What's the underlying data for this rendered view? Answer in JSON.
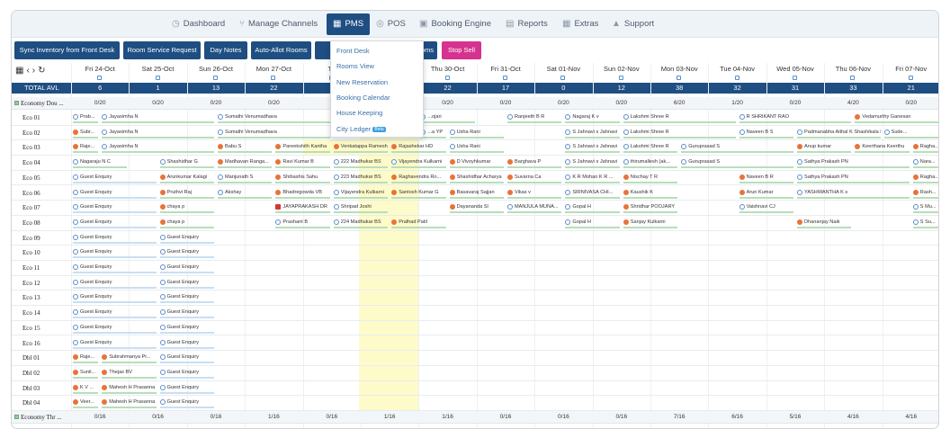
{
  "nav": {
    "items": [
      {
        "label": "Dashboard",
        "icon": "dashboard-icon"
      },
      {
        "label": "Manage Channels",
        "icon": "share-icon"
      },
      {
        "label": "PMS",
        "icon": "building-icon",
        "active": true
      },
      {
        "label": "POS",
        "icon": "pos-icon"
      },
      {
        "label": "Booking Engine",
        "icon": "calendar-icon"
      },
      {
        "label": "Reports",
        "icon": "report-icon"
      },
      {
        "label": "Extras",
        "icon": "grid-icon"
      },
      {
        "label": "Support",
        "icon": "user-icon"
      }
    ]
  },
  "toolbar": {
    "sync": "Sync Inventory from Front Desk",
    "room_service": "Room Service Request",
    "day_notes": "Day Notes",
    "auto_allot": "Auto-Allot Rooms",
    "rooms_suffix": "oms",
    "stop_sell": "Stop Sell"
  },
  "pms_menu": [
    {
      "label": "Front Desk"
    },
    {
      "label": "Rooms View"
    },
    {
      "label": "New Reservation"
    },
    {
      "label": "Booking Calendar"
    },
    {
      "label": "House Keeping"
    },
    {
      "label": "City Ledger",
      "badge": "Beta"
    }
  ],
  "grid": {
    "dates": [
      "Fri 24-Oct",
      "Sat 25-Oct",
      "Sun 26-Oct",
      "Mon 27-Oct",
      "Tu",
      "",
      "Thu 30-Oct",
      "Fri 31-Oct",
      "Sat 01-Nov",
      "Sun 02-Nov",
      "Mon 03-Nov",
      "Tue 04-Nov",
      "Wed 05-Nov",
      "Thu 06-Nov",
      "Fri 07-Nov"
    ],
    "total_label": "TOTAL AVL",
    "total_avl": [
      "6",
      "1",
      "13",
      "22",
      "",
      "",
      "22",
      "17",
      "0",
      "12",
      "38",
      "32",
      "31",
      "33",
      "21"
    ],
    "categories": [
      {
        "label": "Economy Dou ...",
        "counts": [
          "0/20",
          "0/20",
          "0/20",
          "0/20",
          "",
          "",
          "0/20",
          "0/20",
          "0/20",
          "0/20",
          "6/20",
          "1/20",
          "0/20",
          "4/20",
          "0/20"
        ]
      },
      {
        "label": "Economy Thr ...",
        "counts": [
          "0/16",
          "0/16",
          "0/16",
          "1/16",
          "0/16",
          "1/16",
          "1/16",
          "0/16",
          "0/16",
          "0/16",
          "7/16",
          "6/16",
          "5/16",
          "4/16",
          "4/16"
        ]
      }
    ],
    "rooms": [
      "Eco 01",
      "Eco 02",
      "Eco 03",
      "Eco 04",
      "Eco 05",
      "Eco 06",
      "Eco 07",
      "Eco 08",
      "Eco 09",
      "Eco 10",
      "Eco 11",
      "Eco 12",
      "Eco 13",
      "Eco 14",
      "Eco 15",
      "Eco 16",
      "Dbl 01",
      "Dbl 02",
      "Dbl 03",
      "Dbl 04"
    ],
    "bookings": [
      {
        "r": 0,
        "c": 0,
        "s": 0.5,
        "t": "Prab...",
        "k": "b"
      },
      {
        "r": 0,
        "c": 0.5,
        "s": 2,
        "t": "Jayasimha N",
        "k": "b"
      },
      {
        "r": 0,
        "c": 2.5,
        "s": 2,
        "t": "Sumathi Venumadhava",
        "k": "b"
      },
      {
        "r": 0,
        "c": 6,
        "s": 1,
        "t": "...ojari",
        "k": "b"
      },
      {
        "r": 0,
        "c": 7.5,
        "s": 1,
        "t": "Ranjeeth B R",
        "k": "b"
      },
      {
        "r": 0,
        "c": 8.5,
        "s": 1,
        "t": "Nagaraj K v",
        "k": "b"
      },
      {
        "r": 0,
        "c": 9.5,
        "s": 2,
        "t": "Lakshmi Shree R",
        "k": "b"
      },
      {
        "r": 0,
        "c": 11.5,
        "s": 2,
        "t": "R SHRIKANT RAO",
        "k": "b"
      },
      {
        "r": 0,
        "c": 13.5,
        "s": 1.5,
        "t": "Vedamurthy Ganesan",
        "k": "o"
      },
      {
        "r": 1,
        "c": 0,
        "s": 0.5,
        "t": "Subr...",
        "k": "o"
      },
      {
        "r": 1,
        "c": 0.5,
        "s": 2,
        "t": "Jayasimha N",
        "k": "b"
      },
      {
        "r": 1,
        "c": 2.5,
        "s": 2,
        "t": "Sumathi Venumadhava",
        "k": "b"
      },
      {
        "r": 1,
        "c": 6,
        "s": 0.5,
        "t": "...a YP",
        "k": "b"
      },
      {
        "r": 1,
        "c": 6.5,
        "s": 1,
        "t": "Usha Rani",
        "k": "b"
      },
      {
        "r": 1,
        "c": 8.5,
        "s": 1,
        "t": "S Jahnavi s Jahnavi",
        "k": "b"
      },
      {
        "r": 1,
        "c": 9.5,
        "s": 2,
        "t": "Lakshmi Shree R",
        "k": "b"
      },
      {
        "r": 1,
        "c": 11.5,
        "s": 1,
        "t": "Naveen B S",
        "k": "b"
      },
      {
        "r": 1,
        "c": 12.5,
        "s": 1.5,
        "t": "Padmanabha Aithal K Shashikala K",
        "k": "b"
      },
      {
        "r": 1,
        "c": 14,
        "s": 1,
        "t": "Sude...",
        "k": "b"
      },
      {
        "r": 2,
        "c": 0,
        "s": 0.5,
        "t": "Raje...",
        "k": "o"
      },
      {
        "r": 2,
        "c": 0.5,
        "s": 2,
        "t": "Jayasimha N",
        "k": "b"
      },
      {
        "r": 2,
        "c": 2.5,
        "s": 1,
        "t": "Babu S",
        "k": "o"
      },
      {
        "r": 2,
        "c": 3.5,
        "s": 1,
        "t": "Pareekshith Kantha",
        "k": "o"
      },
      {
        "r": 2,
        "c": 4.5,
        "s": 1,
        "t": "Venkatappa Ramesh",
        "k": "o"
      },
      {
        "r": 2,
        "c": 5.5,
        "s": 1,
        "t": "Rajashekar HD",
        "k": "o"
      },
      {
        "r": 2,
        "c": 6.5,
        "s": 1,
        "t": "Usha Rani",
        "k": "b"
      },
      {
        "r": 2,
        "c": 8.5,
        "s": 1,
        "t": "S Jahnavi s Jahnavi",
        "k": "b"
      },
      {
        "r": 2,
        "c": 9.5,
        "s": 1,
        "t": "Lakshmi Shree R",
        "k": "b"
      },
      {
        "r": 2,
        "c": 10.5,
        "s": 2,
        "t": "Guruprasad S",
        "k": "b"
      },
      {
        "r": 2,
        "c": 12.5,
        "s": 1,
        "t": "Anup kumar",
        "k": "o"
      },
      {
        "r": 2,
        "c": 13.5,
        "s": 1,
        "t": "Keerthana Keerthu",
        "k": "o"
      },
      {
        "r": 2,
        "c": 14.5,
        "s": 0.5,
        "t": "Ragha...",
        "k": "o"
      },
      {
        "r": 3,
        "c": 0,
        "s": 1,
        "t": "Nagaraju N C",
        "k": "b"
      },
      {
        "r": 3,
        "c": 1.5,
        "s": 1,
        "t": "Shashidhar G",
        "k": "b"
      },
      {
        "r": 3,
        "c": 2.5,
        "s": 1,
        "t": "Madhavan Ranga...",
        "k": "o"
      },
      {
        "r": 3,
        "c": 3.5,
        "s": 1,
        "t": "Ravi Kumar B",
        "k": "o"
      },
      {
        "r": 3,
        "c": 4.5,
        "s": 1,
        "t": "222 Madhukar BS",
        "k": "b"
      },
      {
        "r": 3,
        "c": 5.5,
        "s": 1,
        "t": "Vijayendra Kulkarni",
        "k": "b"
      },
      {
        "r": 3,
        "c": 6.5,
        "s": 1,
        "t": "D Vivoyhkumar",
        "k": "o"
      },
      {
        "r": 3,
        "c": 7.5,
        "s": 1,
        "t": "Barghava P",
        "k": "o"
      },
      {
        "r": 3,
        "c": 8.5,
        "s": 1,
        "t": "S Jahnavi s Jahnavi",
        "k": "b"
      },
      {
        "r": 3,
        "c": 9.5,
        "s": 1,
        "t": "thirumallesh (ak...",
        "k": "b"
      },
      {
        "r": 3,
        "c": 10.5,
        "s": 2,
        "t": "Guruprasad S",
        "k": "b"
      },
      {
        "r": 3,
        "c": 12.5,
        "s": 2,
        "t": "Sathya Prakash PN",
        "k": "b"
      },
      {
        "r": 3,
        "c": 14.5,
        "s": 0.5,
        "t": "Nara...",
        "k": "b"
      },
      {
        "r": 4,
        "c": 0,
        "s": 1.5,
        "t": "Guest Enquiry",
        "k": "b"
      },
      {
        "r": 4,
        "c": 1.5,
        "s": 1,
        "t": "Arunkumar Kalagi",
        "k": "o"
      },
      {
        "r": 4,
        "c": 2.5,
        "s": 1,
        "t": "Manjunath S",
        "k": "b"
      },
      {
        "r": 4,
        "c": 3.5,
        "s": 1,
        "t": "Shibashis Sahu",
        "k": "o"
      },
      {
        "r": 4,
        "c": 4.5,
        "s": 1,
        "t": "223 Madhukar BS",
        "k": "b"
      },
      {
        "r": 4,
        "c": 5.5,
        "s": 1,
        "t": "Raghavendra Ro...",
        "k": "o"
      },
      {
        "r": 4,
        "c": 6.5,
        "s": 1,
        "t": "Shashidhar Acharya",
        "k": "o"
      },
      {
        "r": 4,
        "c": 7.5,
        "s": 1,
        "t": "Suvarna Ca",
        "k": "o"
      },
      {
        "r": 4,
        "c": 8.5,
        "s": 1,
        "t": "K R Mohan K R ...",
        "k": "b"
      },
      {
        "r": 4,
        "c": 9.5,
        "s": 1,
        "t": "Nischay T R",
        "k": "o"
      },
      {
        "r": 4,
        "c": 11.5,
        "s": 1,
        "t": "Naveen B R",
        "k": "o"
      },
      {
        "r": 4,
        "c": 12.5,
        "s": 2,
        "t": "Sathya Prakash PN",
        "k": "b"
      },
      {
        "r": 4,
        "c": 14.5,
        "s": 0.5,
        "t": "Ragha...",
        "k": "o"
      },
      {
        "r": 5,
        "c": 0,
        "s": 1.5,
        "t": "Guest Enquiry",
        "k": "b"
      },
      {
        "r": 5,
        "c": 1.5,
        "s": 1,
        "t": "Pruthvi Raj",
        "k": "o"
      },
      {
        "r": 5,
        "c": 2.5,
        "s": 1,
        "t": "Akshay",
        "k": "b"
      },
      {
        "r": 5,
        "c": 3.5,
        "s": 1,
        "t": "Bhadregowda VB",
        "k": "o"
      },
      {
        "r": 5,
        "c": 4.5,
        "s": 1,
        "t": "Vijayendra Kulkarni",
        "k": "b"
      },
      {
        "r": 5,
        "c": 5.5,
        "s": 1,
        "t": "Santosh Kumar G",
        "k": "o"
      },
      {
        "r": 5,
        "c": 6.5,
        "s": 1,
        "t": "Basavaraj Sajjan",
        "k": "o"
      },
      {
        "r": 5,
        "c": 7.5,
        "s": 1,
        "t": "Vikas v",
        "k": "o"
      },
      {
        "r": 5,
        "c": 8.5,
        "s": 1,
        "t": "SRINIVASA CHI...",
        "k": "b"
      },
      {
        "r": 5,
        "c": 9.5,
        "s": 1,
        "t": "Kaushik K",
        "k": "o"
      },
      {
        "r": 5,
        "c": 11.5,
        "s": 1,
        "t": "Arun Kumar",
        "k": "o"
      },
      {
        "r": 5,
        "c": 12.5,
        "s": 2,
        "t": "YASHWANTHA K s",
        "k": "b"
      },
      {
        "r": 5,
        "c": 14.5,
        "s": 0.5,
        "t": "Rash...",
        "k": "o"
      },
      {
        "r": 6,
        "c": 0,
        "s": 1.5,
        "t": "Guest Enquiry",
        "k": "b"
      },
      {
        "r": 6,
        "c": 1.5,
        "s": 1,
        "t": "chaya p",
        "k": "o"
      },
      {
        "r": 6,
        "c": 3.5,
        "s": 1,
        "t": "JAYAPRAKASH DR",
        "k": "r"
      },
      {
        "r": 6,
        "c": 4.5,
        "s": 1,
        "t": "Shripad Joshi",
        "k": "b"
      },
      {
        "r": 6,
        "c": 6.5,
        "s": 1,
        "t": "Dayananda Sl",
        "k": "o"
      },
      {
        "r": 6,
        "c": 7.5,
        "s": 1,
        "t": "MANJULA MUNA...",
        "k": "b"
      },
      {
        "r": 6,
        "c": 8.5,
        "s": 1,
        "t": "Gopal H",
        "k": "b"
      },
      {
        "r": 6,
        "c": 9.5,
        "s": 1,
        "t": "Shridhar POOJARY",
        "k": "o"
      },
      {
        "r": 6,
        "c": 11.5,
        "s": 1,
        "t": "Vaishnavi CJ",
        "k": "b"
      },
      {
        "r": 6,
        "c": 14.5,
        "s": 0.5,
        "t": "S Mu...",
        "k": "b"
      },
      {
        "r": 7,
        "c": 0,
        "s": 1.5,
        "t": "Guest Enquiry",
        "k": "b"
      },
      {
        "r": 7,
        "c": 1.5,
        "s": 1,
        "t": "chaya p",
        "k": "o"
      },
      {
        "r": 7,
        "c": 3.5,
        "s": 1,
        "t": "Prashant B",
        "k": "b"
      },
      {
        "r": 7,
        "c": 4.5,
        "s": 1,
        "t": "224 Madhukar BS",
        "k": "b"
      },
      {
        "r": 7,
        "c": 5.5,
        "s": 1,
        "t": "Pralhad Patil",
        "k": "o"
      },
      {
        "r": 7,
        "c": 8.5,
        "s": 1,
        "t": "Gopal H",
        "k": "b"
      },
      {
        "r": 7,
        "c": 9.5,
        "s": 1,
        "t": "Sanjay Kulkarni",
        "k": "o"
      },
      {
        "r": 7,
        "c": 12.5,
        "s": 1,
        "t": "Dhananjay Naik",
        "k": "o"
      },
      {
        "r": 7,
        "c": 14.5,
        "s": 0.5,
        "t": "S Su...",
        "k": "b"
      },
      {
        "r": 8,
        "c": 0,
        "s": 1.5,
        "t": "Guest Enquiry",
        "k": "b"
      },
      {
        "r": 8,
        "c": 1.5,
        "s": 1,
        "t": "Guest Enquiry",
        "k": "b"
      },
      {
        "r": 9,
        "c": 0,
        "s": 1.5,
        "t": "Guest Enquiry",
        "k": "b"
      },
      {
        "r": 9,
        "c": 1.5,
        "s": 1,
        "t": "Guest Enquiry",
        "k": "b"
      },
      {
        "r": 10,
        "c": 0,
        "s": 1.5,
        "t": "Guest Enquiry",
        "k": "b"
      },
      {
        "r": 10,
        "c": 1.5,
        "s": 1,
        "t": "Guest Enquiry",
        "k": "b"
      },
      {
        "r": 11,
        "c": 0,
        "s": 1.5,
        "t": "Guest Enquiry",
        "k": "b"
      },
      {
        "r": 11,
        "c": 1.5,
        "s": 1,
        "t": "Guest Enquiry",
        "k": "b"
      },
      {
        "r": 12,
        "c": 0,
        "s": 1.5,
        "t": "Guest Enquiry",
        "k": "b"
      },
      {
        "r": 12,
        "c": 1.5,
        "s": 1,
        "t": "Guest Enquiry",
        "k": "b"
      },
      {
        "r": 13,
        "c": 0,
        "s": 1.5,
        "t": "Guest Enquiry",
        "k": "b"
      },
      {
        "r": 13,
        "c": 1.5,
        "s": 1,
        "t": "Guest Enquiry",
        "k": "b"
      },
      {
        "r": 14,
        "c": 0,
        "s": 1.5,
        "t": "Guest Enquiry",
        "k": "b"
      },
      {
        "r": 14,
        "c": 1.5,
        "s": 1,
        "t": "Guest Enquiry",
        "k": "b"
      },
      {
        "r": 15,
        "c": 0,
        "s": 1.5,
        "t": "Guest Enquiry",
        "k": "b"
      },
      {
        "r": 15,
        "c": 1.5,
        "s": 1,
        "t": "Guest Enquiry",
        "k": "b"
      },
      {
        "r": 16,
        "c": 0,
        "s": 0.5,
        "t": "Raje...",
        "k": "o"
      },
      {
        "r": 16,
        "c": 0.5,
        "s": 1,
        "t": "Subrahmanya Pr...",
        "k": "o"
      },
      {
        "r": 16,
        "c": 1.5,
        "s": 1,
        "t": "Guest Enquiry",
        "k": "b"
      },
      {
        "r": 17,
        "c": 0,
        "s": 0.5,
        "t": "Sunil...",
        "k": "o"
      },
      {
        "r": 17,
        "c": 0.5,
        "s": 1,
        "t": "Thejas BV",
        "k": "o"
      },
      {
        "r": 17,
        "c": 1.5,
        "s": 1,
        "t": "Guest Enquiry",
        "k": "b"
      },
      {
        "r": 18,
        "c": 0,
        "s": 0.5,
        "t": "K V ...",
        "k": "o"
      },
      {
        "r": 18,
        "c": 0.5,
        "s": 1,
        "t": "Mahesh H Prasanna",
        "k": "o"
      },
      {
        "r": 18,
        "c": 1.5,
        "s": 1,
        "t": "Guest Enquiry",
        "k": "b"
      },
      {
        "r": 19,
        "c": 0,
        "s": 0.5,
        "t": "Veer...",
        "k": "o"
      },
      {
        "r": 19,
        "c": 0.5,
        "s": 1,
        "t": "Mahesh H Prasanna",
        "k": "o"
      },
      {
        "r": 19,
        "c": 1.5,
        "s": 1,
        "t": "Guest Enquiry",
        "k": "b"
      }
    ]
  }
}
